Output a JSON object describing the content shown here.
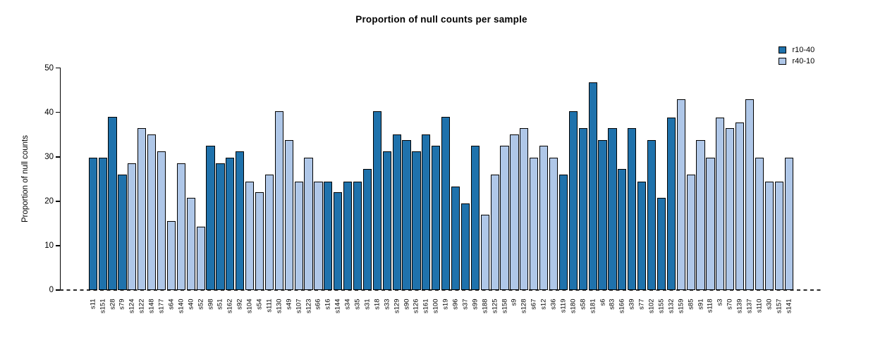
{
  "chart_data": {
    "type": "bar",
    "title": "Proportion of null counts per sample",
    "xlabel": "",
    "ylabel": "Proportion of null counts",
    "ylim": [
      0,
      50
    ],
    "yticks": [
      0,
      10,
      20,
      30,
      40,
      50
    ],
    "grid": false,
    "baseline": {
      "value": 0,
      "style": "dashed"
    },
    "legend_position": "top-right",
    "legend": [
      {
        "label": "r10-40",
        "color": "#1F72AC"
      },
      {
        "label": "r40-10",
        "color": "#AFC7E8"
      }
    ],
    "bar_border_color": "#000000",
    "categories": [
      "s11",
      "s151",
      "s28",
      "s79",
      "s124",
      "s122",
      "s148",
      "s177",
      "s64",
      "s140",
      "s40",
      "s52",
      "s98",
      "s51",
      "s162",
      "s92",
      "s104",
      "s54",
      "s111",
      "s130",
      "s49",
      "s107",
      "s123",
      "s66",
      "s16",
      "s144",
      "s34",
      "s35",
      "s31",
      "s18",
      "s33",
      "s129",
      "s90",
      "s126",
      "s161",
      "s100",
      "s19",
      "s96",
      "s37",
      "s99",
      "s188",
      "s125",
      "s158",
      "s9",
      "s128",
      "s67",
      "s12",
      "s36",
      "s119",
      "s180",
      "s58",
      "s181",
      "s6",
      "s83",
      "s166",
      "s39",
      "s77",
      "s102",
      "s155",
      "s132",
      "s159",
      "s85",
      "s91",
      "s118",
      "s3",
      "s70",
      "s139",
      "s137",
      "s110",
      "s30",
      "s157",
      "s141"
    ],
    "values": [
      29.8,
      29.8,
      39.0,
      26.0,
      28.5,
      36.4,
      35.0,
      31.2,
      15.6,
      28.5,
      20.8,
      14.3,
      32.5,
      28.5,
      29.8,
      31.2,
      24.5,
      22.0,
      26.0,
      40.2,
      33.8,
      24.5,
      29.8,
      24.5,
      24.5,
      22.0,
      24.5,
      24.5,
      27.2,
      40.2,
      31.2,
      35.0,
      33.7,
      31.2,
      35.0,
      32.5,
      39.0,
      23.3,
      19.5,
      32.5,
      16.9,
      26.0,
      32.5,
      35.0,
      36.4,
      29.8,
      32.5,
      29.8,
      26.0,
      40.2,
      36.4,
      46.8,
      33.7,
      36.4,
      27.2,
      36.4,
      24.5,
      33.7,
      20.8,
      38.9,
      42.9,
      26.0,
      33.7,
      29.8,
      38.9,
      36.4,
      37.7,
      42.9,
      29.8,
      24.5,
      24.5,
      29.8
    ],
    "groups": [
      "r10-40",
      "r10-40",
      "r10-40",
      "r10-40",
      "r40-10",
      "r40-10",
      "r40-10",
      "r40-10",
      "r40-10",
      "r40-10",
      "r40-10",
      "r40-10",
      "r10-40",
      "r10-40",
      "r10-40",
      "r10-40",
      "r40-10",
      "r40-10",
      "r40-10",
      "r40-10",
      "r40-10",
      "r40-10",
      "r40-10",
      "r40-10",
      "r10-40",
      "r10-40",
      "r10-40",
      "r10-40",
      "r10-40",
      "r10-40",
      "r10-40",
      "r10-40",
      "r10-40",
      "r10-40",
      "r10-40",
      "r10-40",
      "r10-40",
      "r10-40",
      "r10-40",
      "r10-40",
      "r40-10",
      "r40-10",
      "r40-10",
      "r40-10",
      "r40-10",
      "r40-10",
      "r40-10",
      "r40-10",
      "r10-40",
      "r10-40",
      "r10-40",
      "r10-40",
      "r10-40",
      "r10-40",
      "r10-40",
      "r10-40",
      "r10-40",
      "r10-40",
      "r10-40",
      "r10-40",
      "r40-10",
      "r40-10",
      "r40-10",
      "r40-10",
      "r40-10",
      "r40-10",
      "r40-10",
      "r40-10",
      "r40-10",
      "r40-10",
      "r40-10",
      "r40-10"
    ]
  }
}
